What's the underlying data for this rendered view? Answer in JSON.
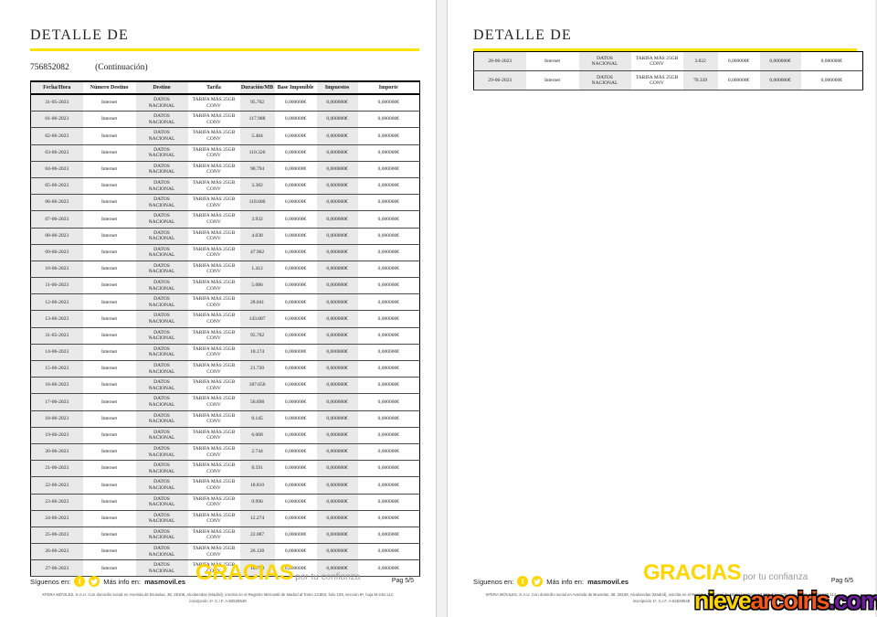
{
  "colors": {
    "brand_yellow": "#FFD600",
    "rule_yellow": "#FFE300",
    "column_shade": "#E9E9E9",
    "watermark_yellow": "#FFD400",
    "watermark_orange": "#F2591B",
    "watermark_purple": "#6B1E99"
  },
  "page_left": {
    "title": "DETALLE DE",
    "account_number": "756852082",
    "continuation_note": "(Continuación)",
    "page_label": "Pag 5/5",
    "table": {
      "headers": [
        "Fecha/Hora",
        "Número Destino",
        "Destino",
        "Tarifa",
        "Duración/MB",
        "Base Imponible",
        "Impuestos",
        "Importe"
      ],
      "rows": [
        [
          "31-05-2023",
          "Internet",
          "DATOS\nNACIONAL",
          "TARIFA MÁS 25GB\nCONV",
          "95.702",
          "0,000000€",
          "0,000000€",
          "0,000000€"
        ],
        [
          "01-06-2023",
          "Internet",
          "DATOS\nNACIONAL",
          "TARIFA MÁS 25GB\nCONV",
          "117.988",
          "0,000000€",
          "0,000000€",
          "0,000000€"
        ],
        [
          "02-06-2023",
          "Internet",
          "DATOS\nNACIONAL",
          "TARIFA MÁS 25GB\nCONV",
          "5.484",
          "0,000000€",
          "0,000000€",
          "0,000000€"
        ],
        [
          "03-06-2023",
          "Internet",
          "DATOS\nNACIONAL",
          "TARIFA MÁS 25GB\nCONV",
          "110.326",
          "0,000000€",
          "0,000000€",
          "0,000000€"
        ],
        [
          "04-06-2023",
          "Internet",
          "DATOS\nNACIONAL",
          "TARIFA MÁS 25GB\nCONV",
          "90.794",
          "0,000000€",
          "0,000000€",
          "0,000000€"
        ],
        [
          "05-06-2023",
          "Internet",
          "DATOS\nNACIONAL",
          "TARIFA MÁS 25GB\nCONV",
          "3.382",
          "0,000000€",
          "0,000000€",
          "0,000000€"
        ],
        [
          "06-06-2023",
          "Internet",
          "DATOS\nNACIONAL",
          "TARIFA MÁS 25GB\nCONV",
          "118.600",
          "0,000000€",
          "0,000000€",
          "0,000000€"
        ],
        [
          "07-06-2023",
          "Internet",
          "DATOS\nNACIONAL",
          "TARIFA MÁS 25GB\nCONV",
          "3.932",
          "0,000000€",
          "0,000000€",
          "0,000000€"
        ],
        [
          "08-06-2023",
          "Internet",
          "DATOS\nNACIONAL",
          "TARIFA MÁS 25GB\nCONV",
          "4.038",
          "0,000000€",
          "0,000000€",
          "0,000000€"
        ],
        [
          "09-06-2023",
          "Internet",
          "DATOS\nNACIONAL",
          "TARIFA MÁS 25GB\nCONV",
          "47.902",
          "0,000000€",
          "0,000000€",
          "0,000000€"
        ],
        [
          "10-06-2023",
          "Internet",
          "DATOS\nNACIONAL",
          "TARIFA MÁS 25GB\nCONV",
          "1.412",
          "0,000000€",
          "0,000000€",
          "0,000000€"
        ],
        [
          "11-06-2023",
          "Internet",
          "DATOS\nNACIONAL",
          "TARIFA MÁS 25GB\nCONV",
          "5.086",
          "0,000000€",
          "0,000000€",
          "0,000000€"
        ],
        [
          "12-06-2023",
          "Internet",
          "DATOS\nNACIONAL",
          "TARIFA MÁS 25GB\nCONV",
          "28.041",
          "0,000000€",
          "0,000000€",
          "0,000000€"
        ],
        [
          "13-06-2023",
          "Internet",
          "DATOS\nNACIONAL",
          "TARIFA MÁS 25GB\nCONV",
          "143.687",
          "0,000000€",
          "0,000000€",
          "0,000000€"
        ],
        [
          "31-05-2023",
          "Internet",
          "DATOS\nNACIONAL",
          "TARIFA MÁS 25GB\nCONV",
          "95.702",
          "0,000000€",
          "0,000000€",
          "0,000000€"
        ],
        [
          "14-06-2023",
          "Internet",
          "DATOS\nNACIONAL",
          "TARIFA MÁS 25GB\nCONV",
          "18.174",
          "0,000000€",
          "0,000000€",
          "0,000000€"
        ],
        [
          "15-06-2023",
          "Internet",
          "DATOS\nNACIONAL",
          "TARIFA MÁS 25GB\nCONV",
          "21.720",
          "0,000000€",
          "0,000000€",
          "0,000000€"
        ],
        [
          "16-06-2023",
          "Internet",
          "DATOS\nNACIONAL",
          "TARIFA MÁS 25GB\nCONV",
          "187.650",
          "0,000000€",
          "0,000000€",
          "0,000000€"
        ],
        [
          "17-06-2023",
          "Internet",
          "DATOS\nNACIONAL",
          "TARIFA MÁS 25GB\nCONV",
          "56.698",
          "0,000000€",
          "0,000000€",
          "0,000000€"
        ],
        [
          "18-06-2023",
          "Internet",
          "DATOS\nNACIONAL",
          "TARIFA MÁS 25GB\nCONV",
          "0.145",
          "0,000000€",
          "0,000000€",
          "0,000000€"
        ],
        [
          "19-06-2023",
          "Internet",
          "DATOS\nNACIONAL",
          "TARIFA MÁS 25GB\nCONV",
          "6.068",
          "0,000000€",
          "0,000000€",
          "0,000000€"
        ],
        [
          "20-06-2023",
          "Internet",
          "DATOS\nNACIONAL",
          "TARIFA MÁS 25GB\nCONV",
          "2.744",
          "0,000000€",
          "0,000000€",
          "0,000000€"
        ],
        [
          "21-06-2023",
          "Internet",
          "DATOS\nNACIONAL",
          "TARIFA MÁS 25GB\nCONV",
          "8.591",
          "0,000000€",
          "0,000000€",
          "0,000000€"
        ],
        [
          "22-06-2023",
          "Internet",
          "DATOS\nNACIONAL",
          "TARIFA MÁS 25GB\nCONV",
          "18.810",
          "0,000000€",
          "0,000000€",
          "0,000000€"
        ],
        [
          "23-06-2023",
          "Internet",
          "DATOS\nNACIONAL",
          "TARIFA MÁS 25GB\nCONV",
          "0.996",
          "0,000000€",
          "0,000000€",
          "0,000000€"
        ],
        [
          "24-06-2023",
          "Internet",
          "DATOS\nNACIONAL",
          "TARIFA MÁS 25GB\nCONV",
          "12.274",
          "0,000000€",
          "0,000000€",
          "0,000000€"
        ],
        [
          "25-06-2023",
          "Internet",
          "DATOS\nNACIONAL",
          "TARIFA MÁS 25GB\nCONV",
          "22.087",
          "0,000000€",
          "0,000000€",
          "0,000000€"
        ],
        [
          "26-06-2023",
          "Internet",
          "DATOS\nNACIONAL",
          "TARIFA MÁS 25GB\nCONV",
          "26.128",
          "0,000000€",
          "0,000000€",
          "0,000000€"
        ],
        [
          "27-06-2023",
          "Internet",
          "DATOS\nNACIONAL",
          "TARIFA MÁS 25GB\nCONV",
          "18.798",
          "0,000000€",
          "0,000000€",
          "0,000000€"
        ]
      ]
    }
  },
  "page_right": {
    "title": "DETALLE DE",
    "page_label": "Pag 6/5",
    "table": {
      "rows": [
        [
          "28-06-2023",
          "Internet",
          "DATOS\nNACIONAL",
          "TARIFA MÁS 25GB\nCONV",
          "3.822",
          "0,000000€",
          "0,000000€",
          "0,000000€"
        ],
        [
          "29-06-2023",
          "Internet",
          "DATOS\nNACIONAL",
          "TARIFA MÁS 25GB\nCONV",
          "70.339",
          "0,000000€",
          "0,000000€",
          "0,000000€"
        ]
      ]
    }
  },
  "footer": {
    "follow_label": "Síguenos en:",
    "social_icons": [
      "facebook-icon",
      "twitter-icon"
    ],
    "more_info_label": "Más info en:",
    "site": "masmovil.es",
    "thanks_big": "GRACIAS",
    "thanks_tagline": "por tu confianza",
    "legal_line1": "XFERA MÓVILES, S.A.U. Con domicilio social en Avenida de Bruselas, 38, 28108, Alcobendas (Madrid), inscrita en el Registro Mercantil de Madrid al Tomo 13.853, folio 105, sección 8ª, hoja M-246.114,",
    "legal_line2": "inscripción 1ª, C.I.F. A-82528548"
  },
  "watermark": {
    "segment_yellow": "nieve",
    "segment_orange": "arcoiris",
    "segment_purple": ".com"
  }
}
